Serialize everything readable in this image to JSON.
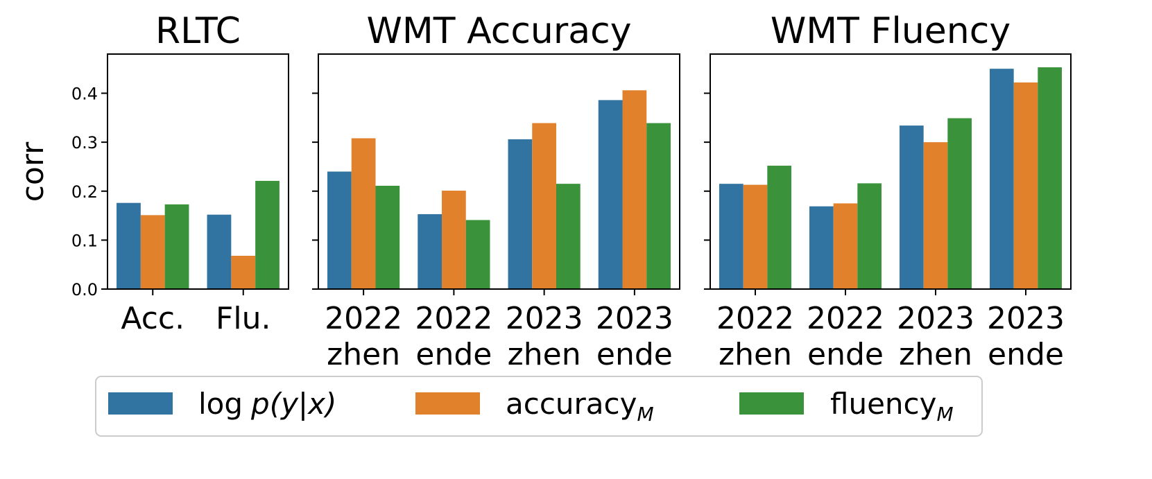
{
  "chart_data": [
    {
      "type": "bar",
      "title": "RLTC",
      "ylabel": "corr",
      "categories": [
        [
          "Acc."
        ],
        [
          "Flu."
        ]
      ],
      "ylim": [
        0,
        0.48
      ],
      "yticks": [
        "0.0",
        "0.1",
        "0.2",
        "0.3",
        "0.4"
      ],
      "series": [
        {
          "name": "log p(y|x)",
          "values": [
            0.176,
            0.152
          ]
        },
        {
          "name": "accuracy_M",
          "values": [
            0.151,
            0.068
          ]
        },
        {
          "name": "fluency_M",
          "values": [
            0.173,
            0.221
          ]
        }
      ]
    },
    {
      "type": "bar",
      "title": "WMT Accuracy",
      "categories": [
        [
          "2022",
          "zhen"
        ],
        [
          "2022",
          "ende"
        ],
        [
          "2023",
          "zhen"
        ],
        [
          "2023",
          "ende"
        ]
      ],
      "ylim": [
        0,
        0.48
      ],
      "series": [
        {
          "name": "log p(y|x)",
          "values": [
            0.24,
            0.153,
            0.306,
            0.386
          ]
        },
        {
          "name": "accuracy_M",
          "values": [
            0.308,
            0.201,
            0.339,
            0.406
          ]
        },
        {
          "name": "fluency_M",
          "values": [
            0.211,
            0.141,
            0.215,
            0.339
          ]
        }
      ]
    },
    {
      "type": "bar",
      "title": "WMT Fluency",
      "categories": [
        [
          "2022",
          "zhen"
        ],
        [
          "2022",
          "ende"
        ],
        [
          "2023",
          "zhen"
        ],
        [
          "2023",
          "ende"
        ]
      ],
      "ylim": [
        0,
        0.48
      ],
      "series": [
        {
          "name": "log p(y|x)",
          "values": [
            0.215,
            0.169,
            0.334,
            0.45
          ]
        },
        {
          "name": "accuracy_M",
          "values": [
            0.213,
            0.175,
            0.3,
            0.422
          ]
        },
        {
          "name": "fluency_M",
          "values": [
            0.252,
            0.216,
            0.349,
            0.453
          ]
        }
      ]
    }
  ],
  "colors": {
    "log_p": "#3274a1",
    "accuracy": "#e1812c",
    "fluency": "#3a923a"
  },
  "legend": {
    "placement": "bottom-center",
    "items": [
      {
        "base": "log",
        "math": "p(y|x)",
        "sub": ""
      },
      {
        "base": "accuracy",
        "math": "",
        "sub": "M"
      },
      {
        "base": "fluency",
        "math": "",
        "sub": "M"
      }
    ]
  }
}
